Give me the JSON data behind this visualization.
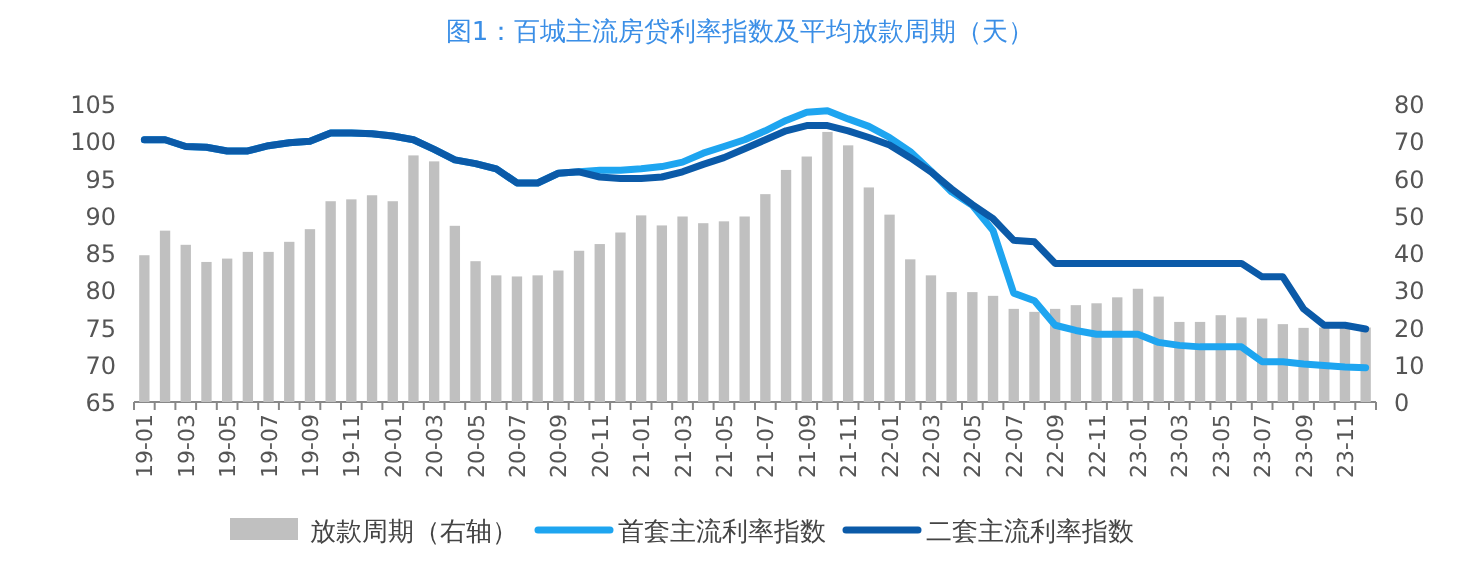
{
  "chart_data": {
    "type": "bar",
    "title": "图1：百城主流房贷利率指数及平均放款周期（天）",
    "categories": [
      "19-01",
      null,
      "19-03",
      null,
      "19-05",
      null,
      "19-07",
      null,
      "19-09",
      null,
      "19-11",
      null,
      "20-01",
      null,
      "20-03",
      null,
      "20-05",
      null,
      "20-07",
      null,
      "20-09",
      null,
      "20-11",
      null,
      "21-01",
      null,
      "21-03",
      null,
      "21-05",
      null,
      "21-07",
      null,
      "21-09",
      null,
      "21-11",
      null,
      "22-01",
      null,
      "22-03",
      null,
      "22-05",
      null,
      "22-07",
      null,
      "22-09",
      null,
      "22-11",
      null,
      "23-01",
      null,
      "23-03",
      null,
      "23-05",
      null,
      "23-07",
      null,
      "23-09",
      null,
      "23-11",
      null
    ],
    "series": [
      {
        "name": "放款周期（右轴）",
        "axis": "y2",
        "color": "#c0c0c0",
        "values": [
          39.4,
          46,
          42.2,
          37.6,
          38.5,
          40.3,
          40.3,
          43,
          46.4,
          53.9,
          54.4,
          55.5,
          53.9,
          66.2,
          64.6,
          47.3,
          37.8,
          34,
          33.7,
          34,
          35.3,
          40.6,
          42.4,
          45.5,
          50.1,
          47.4,
          49.8,
          48,
          48.5,
          49.8,
          55.8,
          62.3,
          65.9,
          72.5,
          68.9,
          57.6,
          50.3,
          38.3,
          34,
          29.5,
          29.5,
          28.5,
          25,
          24.2,
          25,
          26,
          26.5,
          28.1,
          30.4,
          28.3,
          21.5,
          21.5,
          23.3,
          22.7,
          22.4,
          20.9,
          19.9,
          20,
          20,
          20
        ]
      },
      {
        "name": "首套主流利率指数",
        "type": "line",
        "color": "#1ea5f0",
        "values": [
          100.2,
          100.2,
          99.3,
          99.2,
          98.7,
          98.7,
          99.4,
          99.8,
          100,
          101.1,
          101.1,
          101,
          100.7,
          100.2,
          98.9,
          97.5,
          97,
          96.3,
          94.4,
          94.4,
          95.7,
          95.9,
          96.1,
          96.1,
          96.3,
          96.6,
          97.2,
          98.4,
          99.3,
          100.2,
          101.4,
          102.8,
          103.9,
          104.1,
          103,
          102,
          100.5,
          98.6,
          96,
          93.2,
          91.4,
          88,
          79.6,
          78.6,
          75.3,
          74.6,
          74.1,
          74.1,
          74.1,
          73,
          72.6,
          72.4,
          72.4,
          72.4,
          70.4,
          70.4,
          70.1,
          69.9,
          69.7,
          69.6
        ]
      },
      {
        "name": "二套主流利率指数",
        "type": "line",
        "color": "#0b5aa8",
        "values": [
          100.2,
          100.2,
          99.3,
          99.2,
          98.7,
          98.7,
          99.4,
          99.8,
          100,
          101.1,
          101.1,
          101,
          100.7,
          100.2,
          98.9,
          97.5,
          97,
          96.3,
          94.4,
          94.4,
          95.7,
          95.9,
          95.2,
          95,
          95,
          95.2,
          95.9,
          96.9,
          97.8,
          99,
          100.2,
          101.4,
          102.1,
          102.1,
          101.4,
          100.5,
          99.5,
          97.8,
          95.9,
          93.6,
          91.5,
          89.6,
          86.7,
          86.5,
          83.6,
          83.6,
          83.6,
          83.6,
          83.6,
          83.6,
          83.6,
          83.6,
          83.6,
          83.6,
          81.8,
          81.8,
          77.5,
          75.3,
          75.3,
          74.8
        ]
      }
    ],
    "ylim": [
      65,
      105
    ],
    "yticks": [
      65,
      70,
      75,
      80,
      85,
      90,
      95,
      100,
      105
    ],
    "y2lim": [
      0,
      80
    ],
    "y2ticks": [
      0,
      10,
      20,
      30,
      40,
      50,
      60,
      70,
      80
    ],
    "legend": "bottom"
  }
}
